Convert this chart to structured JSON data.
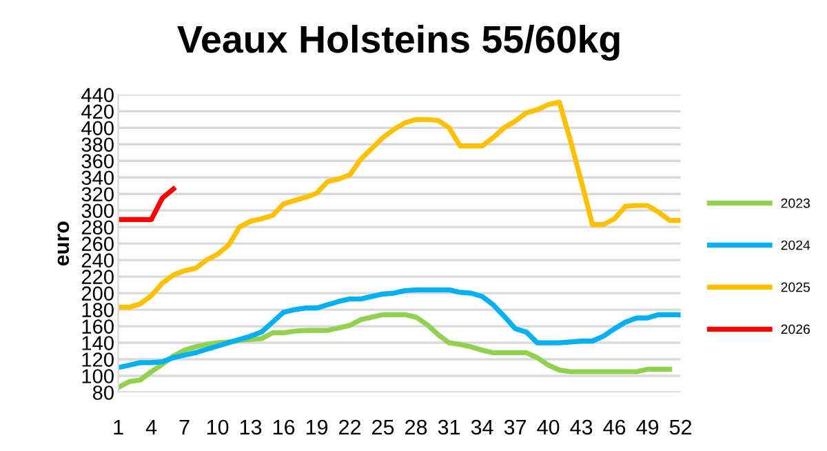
{
  "chart_data": {
    "type": "line",
    "title": "Veaux Holsteins 55/60kg",
    "ylabel": "euro",
    "x": [
      1,
      2,
      3,
      4,
      5,
      6,
      7,
      8,
      9,
      10,
      11,
      12,
      13,
      14,
      15,
      16,
      17,
      18,
      19,
      20,
      21,
      22,
      23,
      24,
      25,
      26,
      27,
      28,
      29,
      30,
      31,
      32,
      33,
      34,
      35,
      36,
      37,
      38,
      39,
      40,
      41,
      42,
      43,
      44,
      45,
      46,
      47,
      48,
      49,
      50,
      51,
      52
    ],
    "xlim": [
      1,
      52
    ],
    "xticks": [
      1,
      4,
      7,
      10,
      13,
      16,
      19,
      22,
      25,
      28,
      31,
      34,
      37,
      40,
      43,
      46,
      49,
      52
    ],
    "ylim": [
      80,
      440
    ],
    "yticks": [
      80,
      100,
      120,
      140,
      160,
      180,
      200,
      220,
      240,
      260,
      280,
      300,
      320,
      340,
      360,
      380,
      400,
      420,
      440
    ],
    "grid": "y",
    "legend": "right",
    "line_style": "solid",
    "marker": "none",
    "series": [
      {
        "name": "2023",
        "color": "#92d050",
        "values": [
          86,
          93,
          95,
          105,
          114,
          124,
          131,
          135,
          138,
          140,
          141,
          143,
          144,
          145,
          152,
          152,
          154,
          155,
          155,
          155,
          158,
          161,
          168,
          171,
          174,
          174,
          174,
          171,
          162,
          150,
          140,
          138,
          135,
          131,
          128,
          128,
          128,
          128,
          122,
          113,
          107,
          105,
          105,
          105,
          105,
          105,
          105,
          105,
          108,
          108,
          108,
          null
        ]
      },
      {
        "name": "2024",
        "color": "#00b0f0",
        "values": [
          110,
          113,
          116,
          116,
          117,
          122,
          125,
          128,
          132,
          136,
          140,
          144,
          148,
          153,
          165,
          177,
          180,
          182,
          182,
          186,
          190,
          193,
          193,
          196,
          199,
          200,
          203,
          204,
          204,
          204,
          204,
          201,
          200,
          196,
          186,
          172,
          157,
          153,
          140,
          140,
          140,
          141,
          142,
          142,
          148,
          157,
          165,
          170,
          170,
          174,
          174,
          174
        ]
      },
      {
        "name": "2025",
        "color": "#ffc000",
        "values": [
          183,
          183,
          187,
          197,
          212,
          222,
          227,
          230,
          240,
          247,
          258,
          280,
          287,
          290,
          294,
          308,
          312,
          316,
          321,
          335,
          338,
          343,
          362,
          375,
          388,
          398,
          406,
          410,
          410,
          409,
          400,
          378,
          378,
          378,
          388,
          400,
          408,
          418,
          422,
          428,
          431,
          385,
          335,
          283,
          283,
          290,
          305,
          306,
          306,
          298,
          288,
          288
        ]
      },
      {
        "name": "2026",
        "color": "#ff0000",
        "values": [
          289,
          289,
          289,
          289,
          315,
          326,
          null,
          null,
          null,
          null,
          null,
          null,
          null,
          null,
          null,
          null,
          null,
          null,
          null,
          null,
          null,
          null,
          null,
          null,
          null,
          null,
          null,
          null,
          null,
          null,
          null,
          null,
          null,
          null,
          null,
          null,
          null,
          null,
          null,
          null,
          null,
          null,
          null,
          null,
          null,
          null,
          null,
          null,
          null,
          null,
          null,
          null
        ]
      }
    ]
  }
}
